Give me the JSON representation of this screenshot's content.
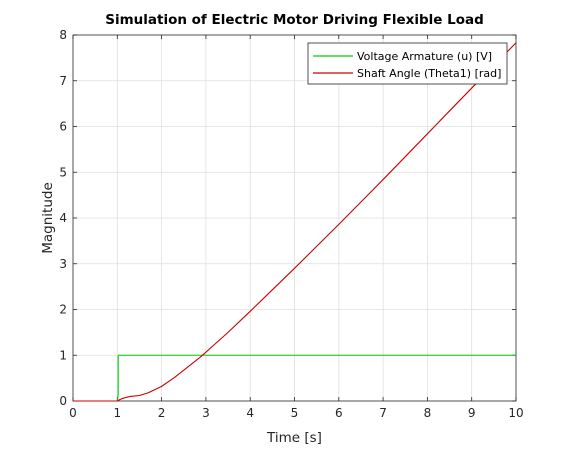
{
  "chart_data": {
    "type": "line",
    "title": "Simulation of Electric Motor Driving Flexible Load",
    "xlabel": "Time [s]",
    "ylabel": "Magnitude",
    "xlim": [
      0,
      10
    ],
    "ylim": [
      0,
      8
    ],
    "xticks": [
      "0",
      "1",
      "2",
      "3",
      "4",
      "5",
      "6",
      "7",
      "8",
      "9",
      "10"
    ],
    "yticks": [
      "0",
      "1",
      "2",
      "3",
      "4",
      "5",
      "6",
      "7",
      "8"
    ],
    "grid": true,
    "legend_position": "top-right",
    "series": [
      {
        "name": "Voltage Armature (u) [V]",
        "color": "#00cc00",
        "x": [
          0,
          1.0,
          1.02,
          1.02,
          10
        ],
        "y": [
          0,
          0,
          0.15,
          1.0,
          1.0
        ]
      },
      {
        "name": "Shaft Angle (Theta1) [rad]",
        "color": "#cc0000",
        "x": [
          0,
          1.0,
          1.03,
          1.1,
          1.2,
          1.3,
          1.5,
          1.7,
          2.0,
          2.3,
          2.6,
          2.9,
          3.2,
          3.5,
          4.0,
          4.5,
          5.0,
          5.5,
          6.0,
          6.5,
          7.0,
          7.5,
          8.0,
          8.5,
          9.0,
          9.5,
          10.0
        ],
        "y": [
          0,
          0,
          0.02,
          0.05,
          0.08,
          0.1,
          0.12,
          0.18,
          0.32,
          0.52,
          0.75,
          0.98,
          1.24,
          1.5,
          1.96,
          2.43,
          2.9,
          3.38,
          3.86,
          4.35,
          4.84,
          5.34,
          5.84,
          6.34,
          6.84,
          7.33,
          7.83
        ]
      }
    ]
  }
}
